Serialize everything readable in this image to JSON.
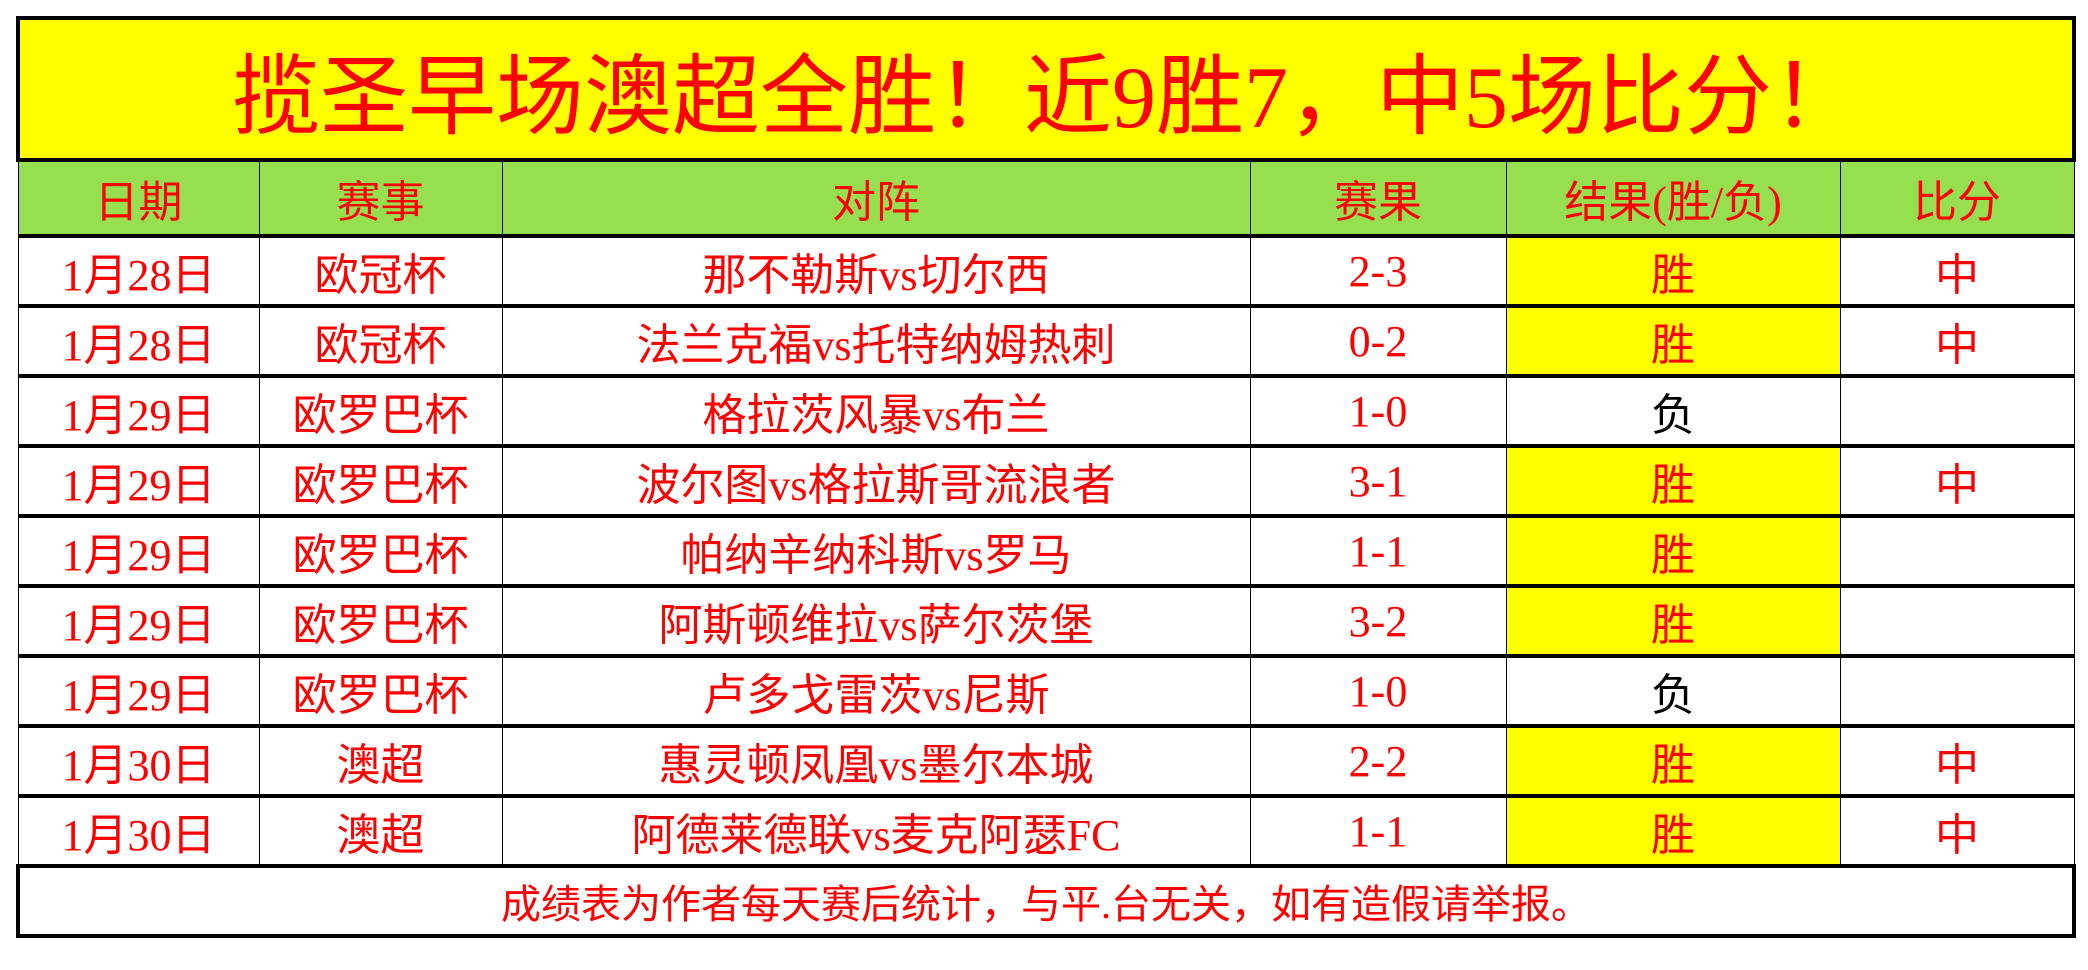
{
  "title": "揽圣早场澳超全胜！近9胜7，中5场比分！",
  "headers": [
    "日期",
    "赛事",
    "对阵",
    "赛果",
    "结果(胜/负)",
    "比分"
  ],
  "rows": [
    {
      "date": "1月28日",
      "league": "欧冠杯",
      "match": "那不勒斯vs切尔西",
      "score": "2-3",
      "result": "胜",
      "hit": "中"
    },
    {
      "date": "1月28日",
      "league": "欧冠杯",
      "match": "法兰克福vs托特纳姆热刺",
      "score": "0-2",
      "result": "胜",
      "hit": "中"
    },
    {
      "date": "1月29日",
      "league": "欧罗巴杯",
      "match": "格拉茨风暴vs布兰",
      "score": "1-0",
      "result": "负",
      "hit": ""
    },
    {
      "date": "1月29日",
      "league": "欧罗巴杯",
      "match": "波尔图vs格拉斯哥流浪者",
      "score": "3-1",
      "result": "胜",
      "hit": "中"
    },
    {
      "date": "1月29日",
      "league": "欧罗巴杯",
      "match": "帕纳辛纳科斯vs罗马",
      "score": "1-1",
      "result": "胜",
      "hit": ""
    },
    {
      "date": "1月29日",
      "league": "欧罗巴杯",
      "match": "阿斯顿维拉vs萨尔茨堡",
      "score": "3-2",
      "result": "胜",
      "hit": ""
    },
    {
      "date": "1月29日",
      "league": "欧罗巴杯",
      "match": "卢多戈雷茨vs尼斯",
      "score": "1-0",
      "result": "负",
      "hit": ""
    },
    {
      "date": "1月30日",
      "league": "澳超",
      "match": "惠灵顿凤凰vs墨尔本城",
      "score": "2-2",
      "result": "胜",
      "hit": "中"
    },
    {
      "date": "1月30日",
      "league": "澳超",
      "match": "阿德莱德联vs麦克阿瑟FC",
      "score": "1-1",
      "result": "胜",
      "hit": "中"
    }
  ],
  "footer": "成绩表为作者每天赛后统计，与平.台无关，如有造假请举报。",
  "colors": {
    "title_bg": "#ffff00",
    "header_bg": "#96e050",
    "text": "#ff0000",
    "win_bg": "#ffff00"
  }
}
